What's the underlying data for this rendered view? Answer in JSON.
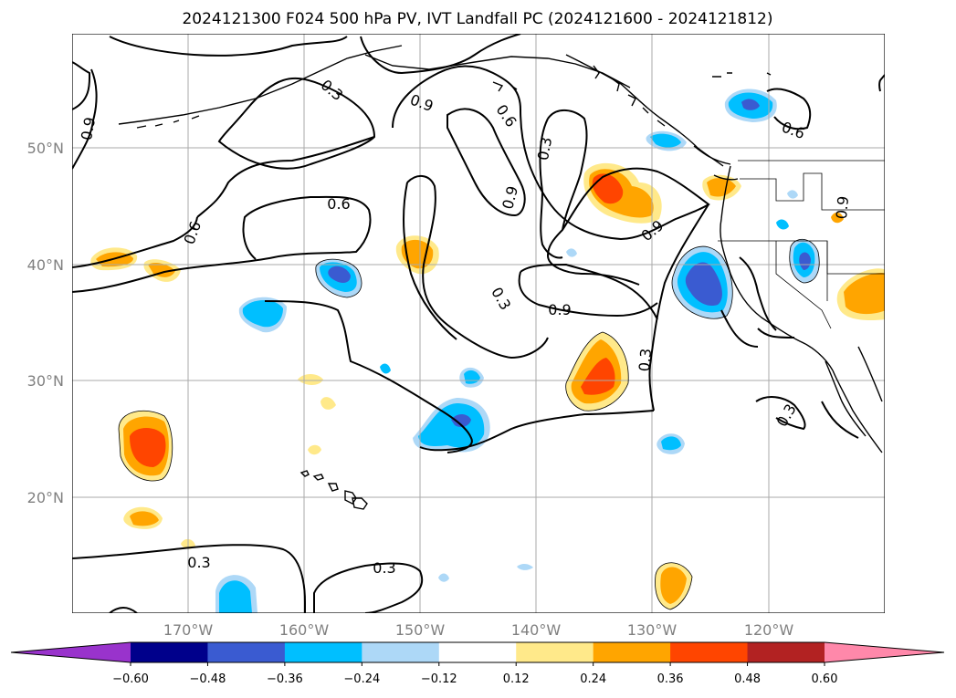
{
  "title": "2024121300 F024 500 hPa PV, IVT Landfall PC (2024121600 - 2024121812)",
  "lat_labels": [
    "50°N",
    "40°N",
    "30°N",
    "20°N"
  ],
  "lon_labels": [
    "170°W",
    "160°W",
    "150°W",
    "140°W",
    "130°W",
    "120°W"
  ],
  "colorbar": {
    "tick_labels": [
      "−0.60",
      "−0.48",
      "−0.36",
      "−0.24",
      "−0.12",
      "0.12",
      "0.24",
      "0.36",
      "0.48",
      "0.60"
    ],
    "colors": [
      "#9933cc",
      "#00008b",
      "#3a5bd1",
      "#00bfff",
      "#add8f7",
      "#ffffff",
      "#ffe98a",
      "#ffa500",
      "#ff4500",
      "#b22222",
      "#ff88aa"
    ]
  },
  "contour_labels": [
    "0.9",
    "0.3",
    "0.9",
    "0.6",
    "0.3",
    "0.9",
    "0.6",
    "0.6",
    "0.6",
    "0.9",
    "0.3",
    "0.9",
    "0.9",
    "0.3",
    "0.3",
    "0.3",
    "0.3",
    "0.9"
  ]
}
